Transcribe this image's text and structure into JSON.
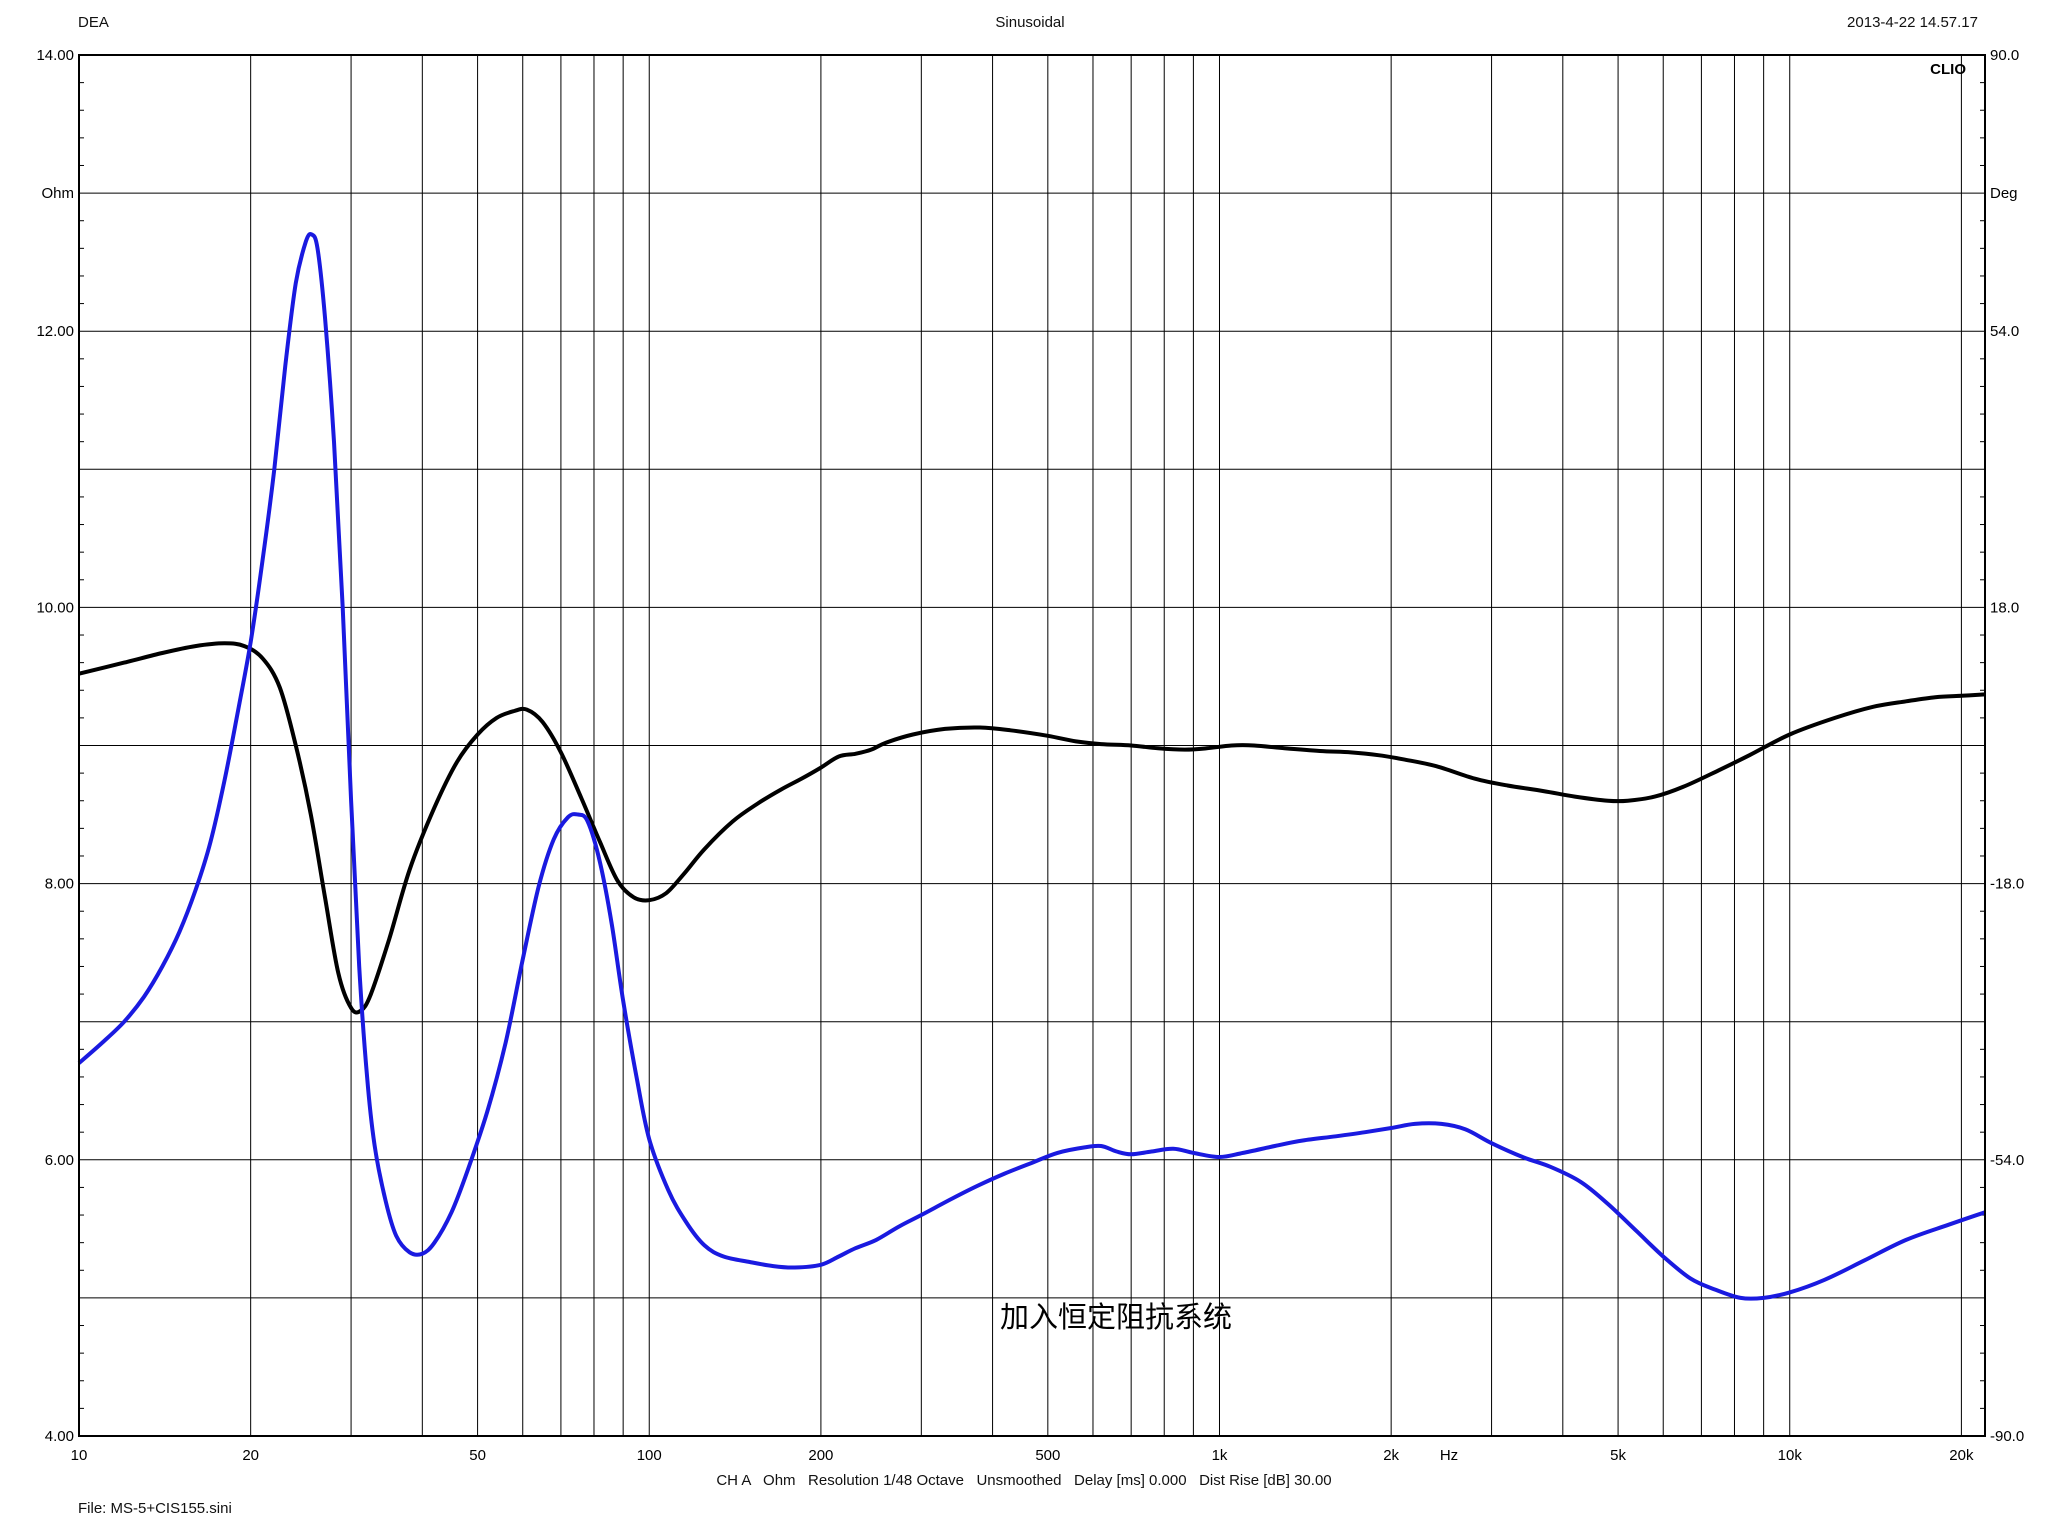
{
  "header": {
    "left": "DEA",
    "center": "Sinusoidal",
    "right": "2013-4-22 14.57.17"
  },
  "logo": "CLIO",
  "annotation": "加入恒定阻抗系统",
  "footer": {
    "settings": "CH A   Ohm   Resolution 1/48 Octave   Unsmoothed   Delay [ms] 0.000   Dist Rise [dB] 30.00",
    "file": "File: MS-5+CIS155.sini"
  },
  "chart_data": {
    "type": "line",
    "x_scale": "log",
    "xlim": [
      10,
      22000
    ],
    "ylim_left": [
      4,
      14
    ],
    "ylim_right": [
      -90,
      90
    ],
    "left_unit": "Ohm",
    "right_unit": "Deg",
    "x_unit": "Hz",
    "x_tick_labels": [
      {
        "v": 10,
        "t": "10"
      },
      {
        "v": 20,
        "t": "20"
      },
      {
        "v": 50,
        "t": "50"
      },
      {
        "v": 100,
        "t": "100"
      },
      {
        "v": 200,
        "t": "200"
      },
      {
        "v": 500,
        "t": "500"
      },
      {
        "v": 1000,
        "t": "1k"
      },
      {
        "v": 2000,
        "t": "2k"
      },
      {
        "v": 5000,
        "t": "5k"
      },
      {
        "v": 10000,
        "t": "10k"
      },
      {
        "v": 20000,
        "t": "20k"
      }
    ],
    "left_tick_labels": [
      {
        "v": 14,
        "t": "14.00"
      },
      {
        "v": 12,
        "t": "12.00"
      },
      {
        "v": 10,
        "t": "10.00"
      },
      {
        "v": 8,
        "t": "8.00"
      },
      {
        "v": 6,
        "t": "6.00"
      },
      {
        "v": 4,
        "t": "4.00"
      }
    ],
    "right_tick_labels": [
      {
        "v": 90,
        "t": "90.0"
      },
      {
        "v": 54,
        "t": "54.0"
      },
      {
        "v": 18,
        "t": "18.0"
      },
      {
        "v": -18,
        "t": "-18.0"
      },
      {
        "v": -54,
        "t": "-54.0"
      },
      {
        "v": -90,
        "t": "-90.0"
      }
    ],
    "grid": true,
    "series": [
      {
        "axis": "left",
        "color": "#000000",
        "points": [
          [
            10,
            9.52
          ],
          [
            12,
            9.6
          ],
          [
            14,
            9.67
          ],
          [
            16,
            9.72
          ],
          [
            18,
            9.74
          ],
          [
            19.5,
            9.72
          ],
          [
            21,
            9.63
          ],
          [
            22.5,
            9.42
          ],
          [
            24,
            9.0
          ],
          [
            25.5,
            8.5
          ],
          [
            27,
            7.9
          ],
          [
            28.5,
            7.35
          ],
          [
            30,
            7.1
          ],
          [
            31.2,
            7.08
          ],
          [
            32.5,
            7.2
          ],
          [
            35,
            7.6
          ],
          [
            38,
            8.1
          ],
          [
            42,
            8.55
          ],
          [
            46,
            8.88
          ],
          [
            50,
            9.08
          ],
          [
            54,
            9.2
          ],
          [
            58,
            9.25
          ],
          [
            61,
            9.26
          ],
          [
            65,
            9.17
          ],
          [
            70,
            8.95
          ],
          [
            76,
            8.62
          ],
          [
            82,
            8.3
          ],
          [
            88,
            8.02
          ],
          [
            94,
            7.9
          ],
          [
            100,
            7.88
          ],
          [
            107,
            7.93
          ],
          [
            115,
            8.07
          ],
          [
            125,
            8.25
          ],
          [
            140,
            8.45
          ],
          [
            155,
            8.58
          ],
          [
            170,
            8.68
          ],
          [
            185,
            8.76
          ],
          [
            200,
            8.84
          ],
          [
            215,
            8.92
          ],
          [
            230,
            8.94
          ],
          [
            245,
            8.97
          ],
          [
            260,
            9.02
          ],
          [
            290,
            9.08
          ],
          [
            330,
            9.12
          ],
          [
            380,
            9.13
          ],
          [
            430,
            9.11
          ],
          [
            500,
            9.07
          ],
          [
            560,
            9.03
          ],
          [
            620,
            9.01
          ],
          [
            700,
            9.0
          ],
          [
            780,
            8.98
          ],
          [
            870,
            8.97
          ],
          [
            950,
            8.98
          ],
          [
            1050,
            9.0
          ],
          [
            1150,
            9.0
          ],
          [
            1300,
            8.98
          ],
          [
            1500,
            8.96
          ],
          [
            1700,
            8.95
          ],
          [
            1900,
            8.93
          ],
          [
            2100,
            8.9
          ],
          [
            2400,
            8.85
          ],
          [
            2800,
            8.76
          ],
          [
            3200,
            8.71
          ],
          [
            3700,
            8.67
          ],
          [
            4200,
            8.63
          ],
          [
            4800,
            8.6
          ],
          [
            5200,
            8.6
          ],
          [
            5800,
            8.63
          ],
          [
            6500,
            8.7
          ],
          [
            7500,
            8.82
          ],
          [
            8500,
            8.93
          ],
          [
            10000,
            9.08
          ],
          [
            12000,
            9.2
          ],
          [
            14000,
            9.28
          ],
          [
            16000,
            9.32
          ],
          [
            18000,
            9.35
          ],
          [
            20000,
            9.36
          ],
          [
            22000,
            9.37
          ]
        ]
      },
      {
        "axis": "left",
        "color": "#1a1ae0",
        "points": [
          [
            10,
            6.7
          ],
          [
            11,
            6.85
          ],
          [
            12,
            7.0
          ],
          [
            13,
            7.18
          ],
          [
            14,
            7.4
          ],
          [
            15,
            7.65
          ],
          [
            16,
            7.95
          ],
          [
            17,
            8.3
          ],
          [
            18,
            8.75
          ],
          [
            19,
            9.25
          ],
          [
            20,
            9.75
          ],
          [
            21,
            10.35
          ],
          [
            22,
            11.0
          ],
          [
            23,
            11.75
          ],
          [
            24,
            12.35
          ],
          [
            25,
            12.65
          ],
          [
            25.6,
            12.7
          ],
          [
            26.2,
            12.6
          ],
          [
            27,
            12.1
          ],
          [
            28,
            11.2
          ],
          [
            29,
            10.0
          ],
          [
            30,
            8.6
          ],
          [
            31,
            7.4
          ],
          [
            32,
            6.6
          ],
          [
            33,
            6.1
          ],
          [
            34.5,
            5.7
          ],
          [
            36,
            5.45
          ],
          [
            38,
            5.33
          ],
          [
            40,
            5.32
          ],
          [
            42,
            5.4
          ],
          [
            45,
            5.62
          ],
          [
            48,
            5.92
          ],
          [
            52,
            6.35
          ],
          [
            56,
            6.85
          ],
          [
            60,
            7.45
          ],
          [
            64,
            7.98
          ],
          [
            68,
            8.32
          ],
          [
            72,
            8.48
          ],
          [
            75,
            8.5
          ],
          [
            78,
            8.45
          ],
          [
            82,
            8.15
          ],
          [
            86,
            7.7
          ],
          [
            90,
            7.15
          ],
          [
            95,
            6.6
          ],
          [
            100,
            6.15
          ],
          [
            108,
            5.78
          ],
          [
            116,
            5.55
          ],
          [
            125,
            5.38
          ],
          [
            135,
            5.3
          ],
          [
            150,
            5.26
          ],
          [
            165,
            5.23
          ],
          [
            180,
            5.22
          ],
          [
            200,
            5.24
          ],
          [
            215,
            5.3
          ],
          [
            230,
            5.36
          ],
          [
            250,
            5.42
          ],
          [
            275,
            5.52
          ],
          [
            300,
            5.6
          ],
          [
            340,
            5.72
          ],
          [
            380,
            5.82
          ],
          [
            420,
            5.9
          ],
          [
            470,
            5.98
          ],
          [
            520,
            6.05
          ],
          [
            580,
            6.09
          ],
          [
            620,
            6.1
          ],
          [
            660,
            6.06
          ],
          [
            700,
            6.04
          ],
          [
            760,
            6.06
          ],
          [
            830,
            6.08
          ],
          [
            900,
            6.05
          ],
          [
            1000,
            6.02
          ],
          [
            1100,
            6.05
          ],
          [
            1250,
            6.1
          ],
          [
            1400,
            6.14
          ],
          [
            1600,
            6.17
          ],
          [
            1800,
            6.2
          ],
          [
            2000,
            6.23
          ],
          [
            2200,
            6.26
          ],
          [
            2450,
            6.26
          ],
          [
            2700,
            6.22
          ],
          [
            3000,
            6.12
          ],
          [
            3400,
            6.02
          ],
          [
            3800,
            5.95
          ],
          [
            4300,
            5.84
          ],
          [
            4800,
            5.68
          ],
          [
            5400,
            5.48
          ],
          [
            6000,
            5.3
          ],
          [
            6700,
            5.14
          ],
          [
            7400,
            5.06
          ],
          [
            8200,
            5.0
          ],
          [
            9000,
            5.0
          ],
          [
            10000,
            5.04
          ],
          [
            11500,
            5.13
          ],
          [
            13500,
            5.27
          ],
          [
            16000,
            5.42
          ],
          [
            19000,
            5.53
          ],
          [
            22000,
            5.62
          ]
        ]
      }
    ]
  }
}
